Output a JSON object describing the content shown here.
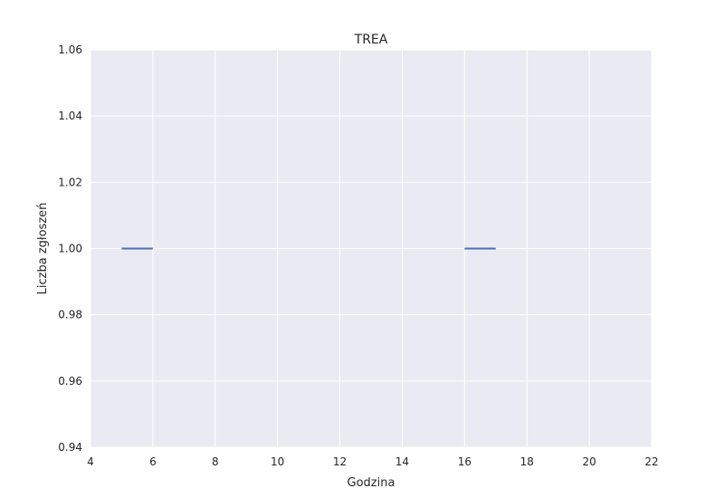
{
  "chart_data": {
    "type": "line",
    "title": "TREA",
    "xlabel": "Godzina",
    "ylabel": "Liczba zgłoszeń",
    "xlim": [
      4,
      22
    ],
    "ylim": [
      0.94,
      1.06
    ],
    "x_ticks": [
      4,
      6,
      8,
      10,
      12,
      14,
      16,
      18,
      20,
      22
    ],
    "y_ticks": [
      0.94,
      0.96,
      0.98,
      1.0,
      1.02,
      1.04,
      1.06
    ],
    "x_tick_labels": [
      "4",
      "6",
      "8",
      "10",
      "12",
      "14",
      "16",
      "18",
      "20",
      "22"
    ],
    "y_tick_labels": [
      "0.94",
      "0.96",
      "0.98",
      "1.00",
      "1.02",
      "1.04",
      "1.06"
    ],
    "grid": true,
    "series": [
      {
        "x": [
          5,
          6
        ],
        "y": [
          1.0,
          1.0
        ]
      },
      {
        "x": [
          16,
          17
        ],
        "y": [
          1.0,
          1.0
        ]
      }
    ],
    "colors": {
      "plot_background": "#EAEAF2",
      "grid": "#FFFFFF",
      "line": "#4C72B0"
    }
  }
}
